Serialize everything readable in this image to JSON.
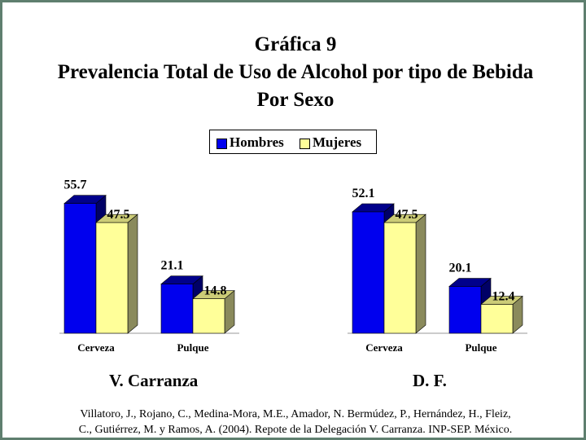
{
  "titles": {
    "line1": "Gráfica 9",
    "line2": "Prevalencia Total de Uso de Alcohol por tipo de Bebida",
    "line3": "Por Sexo"
  },
  "legend": {
    "hombres": "Hombres",
    "mujeres": "Mujeres"
  },
  "colors": {
    "hombres_front": "#0000ee",
    "hombres_top": "#00008b",
    "hombres_side": "#000066",
    "mujeres_front": "#ffff99",
    "mujeres_top": "#cccc77",
    "mujeres_side": "#8a8a5c",
    "frame": "#5f7f6f"
  },
  "chart_data": [
    {
      "type": "bar",
      "group_label": "V. Carranza",
      "categories": [
        "Cerveza",
        "Pulque"
      ],
      "series": [
        {
          "name": "Hombres",
          "values": [
            55.7,
            21.1
          ]
        },
        {
          "name": "Mujeres",
          "values": [
            47.5,
            14.8
          ]
        }
      ],
      "title": "",
      "xlabel": "",
      "ylabel": "",
      "grid": false,
      "legend_position": "top-center"
    },
    {
      "type": "bar",
      "group_label": "D. F.",
      "categories": [
        "Cerveza",
        "Pulque"
      ],
      "series": [
        {
          "name": "Hombres",
          "values": [
            52.1,
            20.1
          ]
        },
        {
          "name": "Mujeres",
          "values": [
            47.5,
            12.4
          ]
        }
      ],
      "title": "",
      "xlabel": "",
      "ylabel": "",
      "grid": false,
      "legend_position": "top-center"
    }
  ],
  "citation": {
    "line1": "Villatoro, J., Rojano, C., Medina-Mora, M.E., Amador, N. Bermúdez, P., Hernández, H., Fleiz,",
    "line2": "C., Gutiérrez, M. y Ramos, A. (2004). Repote de la Delegación V. Carranza. INP-SEP. México."
  }
}
